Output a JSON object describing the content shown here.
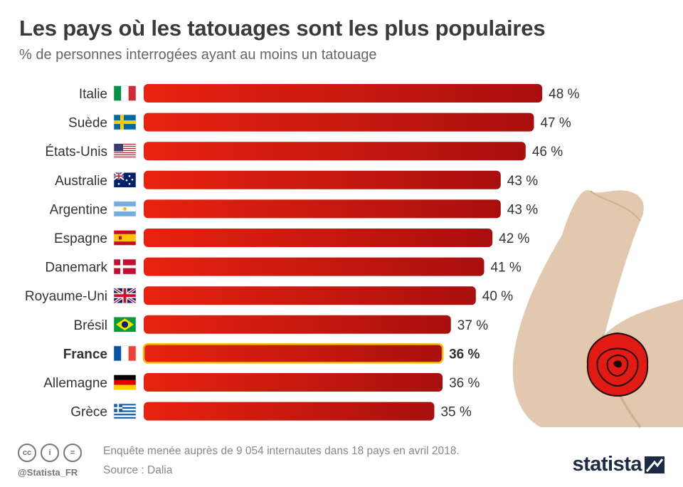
{
  "title": "Les pays où les tatouages sont les plus populaires",
  "subtitle": "% de personnes interrogées ayant au moins un tatouage",
  "chart_data": {
    "type": "bar",
    "orientation": "horizontal",
    "categories": [
      "Italie",
      "Suède",
      "États-Unis",
      "Australie",
      "Argentine",
      "Espagne",
      "Danemark",
      "Royaume-Uni",
      "Brésil",
      "France",
      "Allemagne",
      "Grèce"
    ],
    "values": [
      48,
      47,
      46,
      43,
      43,
      42,
      41,
      40,
      37,
      36,
      36,
      35
    ],
    "value_labels": [
      "48 %",
      "47 %",
      "46 %",
      "43 %",
      "43 %",
      "42 %",
      "41 %",
      "40 %",
      "37 %",
      "36 %",
      "36 %",
      "35 %"
    ],
    "highlight": "France",
    "flags": [
      "italy-flag",
      "sweden-flag",
      "usa-flag",
      "australia-flag",
      "argentina-flag",
      "spain-flag",
      "denmark-flag",
      "uk-flag",
      "brazil-flag",
      "france-flag",
      "germany-flag",
      "greece-flag"
    ],
    "colors": {
      "bar_light": "#e8220f",
      "bar_dark": "#a80f0e",
      "highlight_outline": "#f5b800"
    },
    "grid": false,
    "legend": "none"
  },
  "footer": {
    "note": "Enquête menée auprès de 9 054 internautes dans 18 pays en avril 2018.",
    "source": "Source : Dalia",
    "handle": "@Statista_FR",
    "brand": "statista",
    "license_icons": [
      "cc-icon",
      "by-icon",
      "nd-icon"
    ]
  }
}
